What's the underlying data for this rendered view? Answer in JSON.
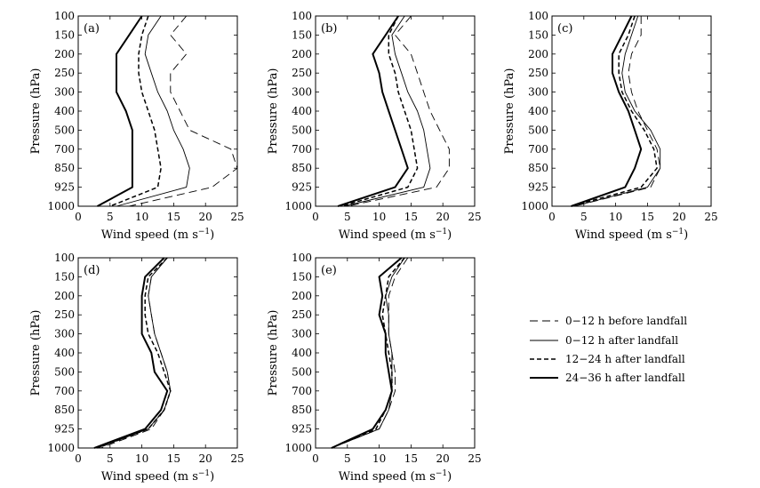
{
  "chart_data": {
    "type": "line",
    "orientation": "profile",
    "xlim": [
      0,
      25
    ],
    "xticks": [
      0,
      5,
      10,
      15,
      20,
      25
    ],
    "xlabel": "Wind speed (m s",
    "xlabel_sup": "−1",
    "xlabel_end": ")",
    "ylabel": "Pressure (hPa)",
    "levels": [
      "100",
      "150",
      "200",
      "250",
      "300",
      "400",
      "500",
      "700",
      "850",
      "925",
      "1000"
    ],
    "legend": [
      {
        "key": "before0_12",
        "label": "0−12 h  before landfall",
        "style": "dash-long"
      },
      {
        "key": "after0_12",
        "label": "0−12 h  after landfall",
        "style": "solid-thin"
      },
      {
        "key": "after12_24",
        "label": "12−24 h  after landfall",
        "style": "dash-thick"
      },
      {
        "key": "after24_36",
        "label": "24−36 h  after landfall",
        "style": "solid-thick"
      }
    ],
    "panels": [
      {
        "label": "(a)",
        "series": {
          "before0_12": [
            17,
            14.5,
            17,
            14.5,
            14.5,
            16,
            17.5,
            24,
            25,
            21,
            8
          ],
          "after0_12": [
            13,
            11,
            10.5,
            11.5,
            12.5,
            14,
            15,
            16.5,
            17.5,
            17,
            6
          ],
          "after12_24": [
            11,
            10,
            9.5,
            9.5,
            10,
            11,
            12,
            12.5,
            13,
            12.5,
            5
          ],
          "after24_36": [
            10,
            8,
            6,
            6,
            6,
            7.5,
            8.5,
            8.5,
            8.5,
            8.5,
            3
          ]
        }
      },
      {
        "label": "(b)",
        "series": {
          "before0_12": [
            15,
            12.5,
            15,
            16,
            17,
            18,
            19.5,
            21,
            21,
            19,
            5
          ],
          "after0_12": [
            14,
            12,
            12.5,
            13.5,
            14.5,
            16,
            17,
            17.5,
            18,
            17,
            4.5
          ],
          "after12_24": [
            13,
            11.5,
            11.5,
            12.5,
            13,
            14,
            15,
            15.5,
            16,
            14.5,
            4
          ],
          "after24_36": [
            13,
            11,
            9,
            10,
            10.5,
            11.5,
            12.5,
            13.5,
            14.5,
            12.5,
            3.5
          ]
        }
      },
      {
        "label": "(c)",
        "series": {
          "before0_12": [
            14,
            14,
            12.5,
            12,
            12.5,
            13.5,
            15,
            16.5,
            17,
            15.5,
            3.5
          ],
          "after0_12": [
            13.5,
            12.5,
            11.5,
            11,
            11.5,
            13,
            15.5,
            17,
            17,
            15,
            3.5
          ],
          "after12_24": [
            13,
            12,
            10.5,
            10.5,
            11,
            12.5,
            14.5,
            16,
            16.5,
            14,
            3
          ],
          "after24_36": [
            12.5,
            11,
            9.5,
            9.5,
            10.5,
            12,
            13,
            14,
            13,
            11.5,
            3
          ]
        }
      },
      {
        "label": "(d)",
        "series": {
          "before0_12": [
            14,
            11.5,
            11,
            11.5,
            12,
            13,
            14,
            14.5,
            13.5,
            11.5,
            3.5
          ],
          "after0_12": [
            14,
            11.5,
            11,
            11.5,
            12,
            13,
            14,
            14.5,
            13.5,
            11,
            3
          ],
          "after12_24": [
            14,
            11,
            10.5,
            10.5,
            11,
            12.5,
            13.5,
            14.5,
            13.5,
            11,
            3
          ],
          "after24_36": [
            13.5,
            10.5,
            10,
            10,
            10,
            11.5,
            12,
            14,
            13,
            10.5,
            2.5
          ]
        }
      },
      {
        "label": "(e)",
        "series": {
          "before0_12": [
            14.5,
            12.5,
            11.5,
            11.5,
            11.5,
            12,
            12.5,
            12.5,
            11.5,
            10,
            2.5
          ],
          "after0_12": [
            14,
            12,
            11,
            11.5,
            11.5,
            12,
            12,
            12,
            11.5,
            10,
            2.5
          ],
          "after12_24": [
            14,
            11.5,
            11,
            10.5,
            11,
            11.5,
            12,
            12,
            11,
            9.5,
            2.5
          ],
          "after24_36": [
            13.5,
            10,
            10.5,
            10,
            11,
            11,
            11.5,
            12,
            11,
            9,
            2.5
          ]
        }
      }
    ]
  }
}
